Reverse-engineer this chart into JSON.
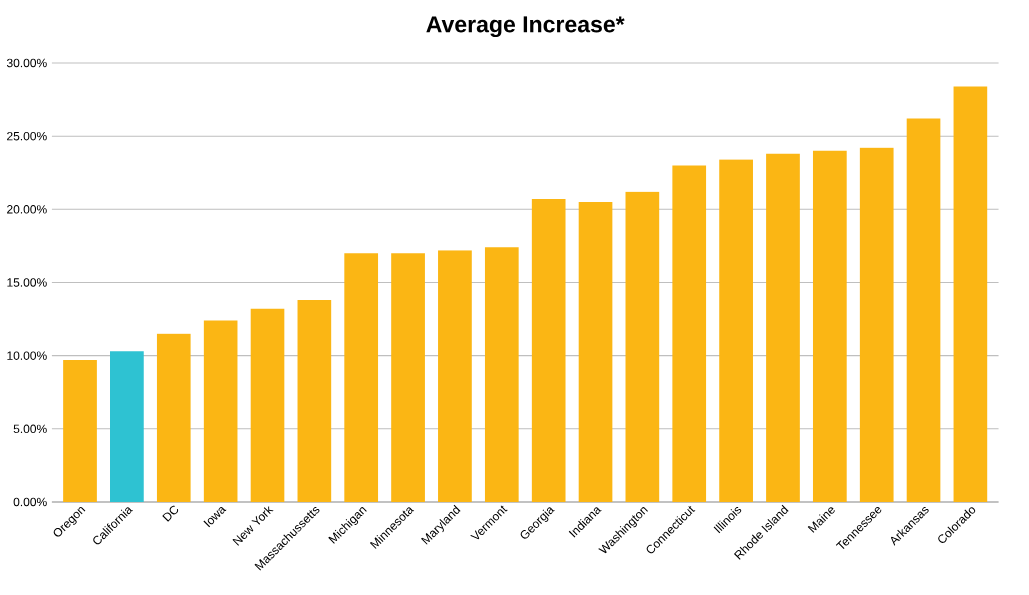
{
  "chart_data": {
    "type": "bar",
    "title": "Average Increase*",
    "categories": [
      "Oregon",
      "California",
      "DC",
      "Iowa",
      "New York",
      "Massachussetts",
      "Michigan",
      "Minnesota",
      "Maryland",
      "Vermont",
      "Georgia",
      "Indiana",
      "Washington",
      "Connecticut",
      "Illinois",
      "Rhode Island",
      "Maine",
      "Tennessee",
      "Arkansas",
      "Colorado"
    ],
    "values": [
      9.7,
      10.3,
      11.5,
      12.4,
      13.2,
      13.8,
      17.0,
      17.0,
      17.2,
      17.4,
      20.7,
      20.5,
      21.2,
      23.0,
      23.4,
      23.8,
      24.0,
      24.2,
      26.2,
      28.4
    ],
    "colors": [
      "#fbb614",
      "#2ec2d2",
      "#fbb614",
      "#fbb614",
      "#fbb614",
      "#fbb614",
      "#fbb614",
      "#fbb614",
      "#fbb614",
      "#fbb614",
      "#fbb614",
      "#fbb614",
      "#fbb614",
      "#fbb614",
      "#fbb614",
      "#fbb614",
      "#fbb614",
      "#fbb614",
      "#fbb614",
      "#fbb614"
    ],
    "ylim": [
      0,
      30
    ],
    "yticks": [
      {
        "value": 0,
        "label": "0.00%"
      },
      {
        "value": 5,
        "label": "5.00%"
      },
      {
        "value": 10,
        "label": "10.00%"
      },
      {
        "value": 15,
        "label": "15.00%"
      },
      {
        "value": 20,
        "label": "20.00%"
      },
      {
        "value": 25,
        "label": "25.00%"
      },
      {
        "value": 30,
        "label": "30.00%"
      }
    ],
    "grid": "y"
  }
}
